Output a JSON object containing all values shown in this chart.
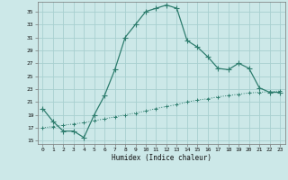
{
  "upper_x": [
    0,
    1,
    2,
    3,
    4,
    5,
    6,
    7,
    8,
    9,
    10,
    11,
    12,
    13,
    14,
    15,
    16,
    17,
    18,
    19,
    20,
    21,
    22,
    23
  ],
  "upper_y": [
    20.0,
    18.0,
    16.5,
    16.5,
    15.5,
    19.0,
    22.0,
    26.0,
    31.0,
    33.0,
    35.0,
    35.5,
    36.0,
    35.5,
    30.5,
    29.5,
    28.0,
    26.2,
    26.0,
    27.0,
    26.2,
    23.2,
    22.5,
    22.5
  ],
  "lower_x": [
    0,
    1,
    2,
    3,
    4,
    5,
    6,
    7,
    8,
    9,
    10,
    11,
    12,
    13,
    14,
    15,
    16,
    17,
    18,
    19,
    20,
    21,
    22,
    23
  ],
  "lower_y": [
    17.0,
    17.2,
    17.4,
    17.6,
    17.8,
    18.1,
    18.4,
    18.7,
    19.0,
    19.3,
    19.6,
    20.0,
    20.3,
    20.6,
    21.0,
    21.3,
    21.5,
    21.8,
    22.0,
    22.2,
    22.4,
    22.5,
    22.6,
    22.7
  ],
  "line_color": "#2e7d6e",
  "bg_color": "#cce8e8",
  "grid_color": "#a8d0d0",
  "xlabel": "Humidex (Indice chaleur)",
  "yticks": [
    15,
    17,
    19,
    21,
    23,
    25,
    27,
    29,
    31,
    33,
    35
  ],
  "xticks": [
    0,
    1,
    2,
    3,
    4,
    5,
    6,
    7,
    8,
    9,
    10,
    11,
    12,
    13,
    14,
    15,
    16,
    17,
    18,
    19,
    20,
    21,
    22,
    23
  ],
  "ylim": [
    14.5,
    36.5
  ],
  "xlim": [
    -0.5,
    23.5
  ]
}
